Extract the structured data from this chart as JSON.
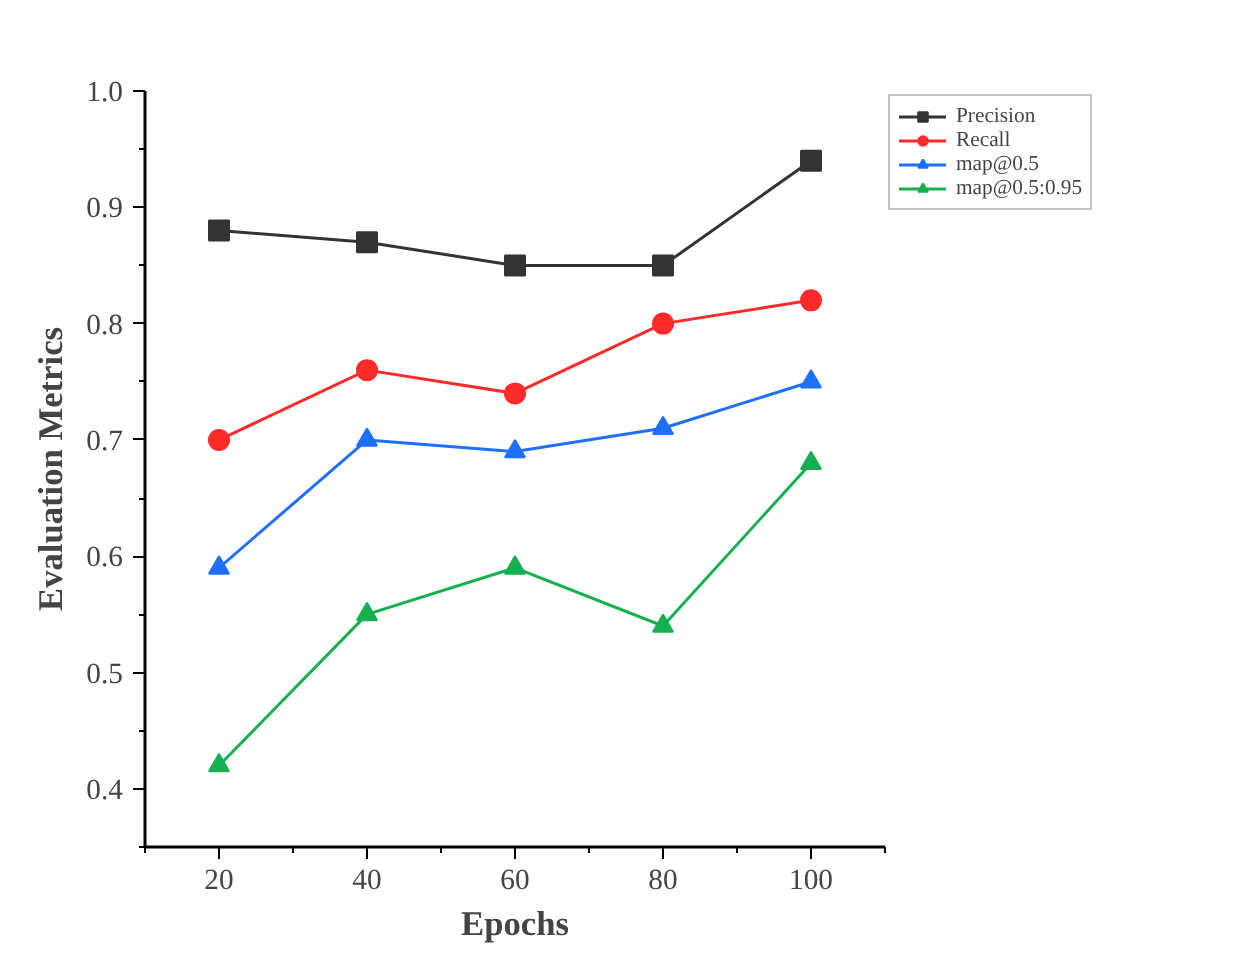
{
  "chart_data": {
    "type": "line",
    "xlabel": "Epochs",
    "ylabel": "Evaluation Metrics",
    "x": [
      20,
      40,
      60,
      80,
      100
    ],
    "series": [
      {
        "name": "Precision",
        "color": "#333333",
        "marker": "square",
        "values": [
          0.88,
          0.87,
          0.85,
          0.85,
          0.94
        ]
      },
      {
        "name": "Recall",
        "color": "#ff2a2a",
        "marker": "circle",
        "values": [
          0.7,
          0.76,
          0.74,
          0.8,
          0.82
        ]
      },
      {
        "name": "map@0.5",
        "color": "#1f6fff",
        "marker": "triangle",
        "values": [
          0.59,
          0.7,
          0.69,
          0.71,
          0.75
        ]
      },
      {
        "name": "map@0.5:0.95",
        "color": "#16b050",
        "marker": "triangle",
        "values": [
          0.42,
          0.55,
          0.59,
          0.54,
          0.68
        ]
      }
    ],
    "xlim": [
      10,
      110
    ],
    "ylim": [
      0.35,
      1.0
    ],
    "xticks": [
      20,
      40,
      60,
      80,
      100
    ],
    "yticks": [
      0.4,
      0.5,
      0.6,
      0.7,
      0.8,
      0.9,
      {
        "value": 1.0,
        "label": "1.0"
      }
    ],
    "grid": false,
    "legend": "top right",
    "line_style": "solid"
  }
}
